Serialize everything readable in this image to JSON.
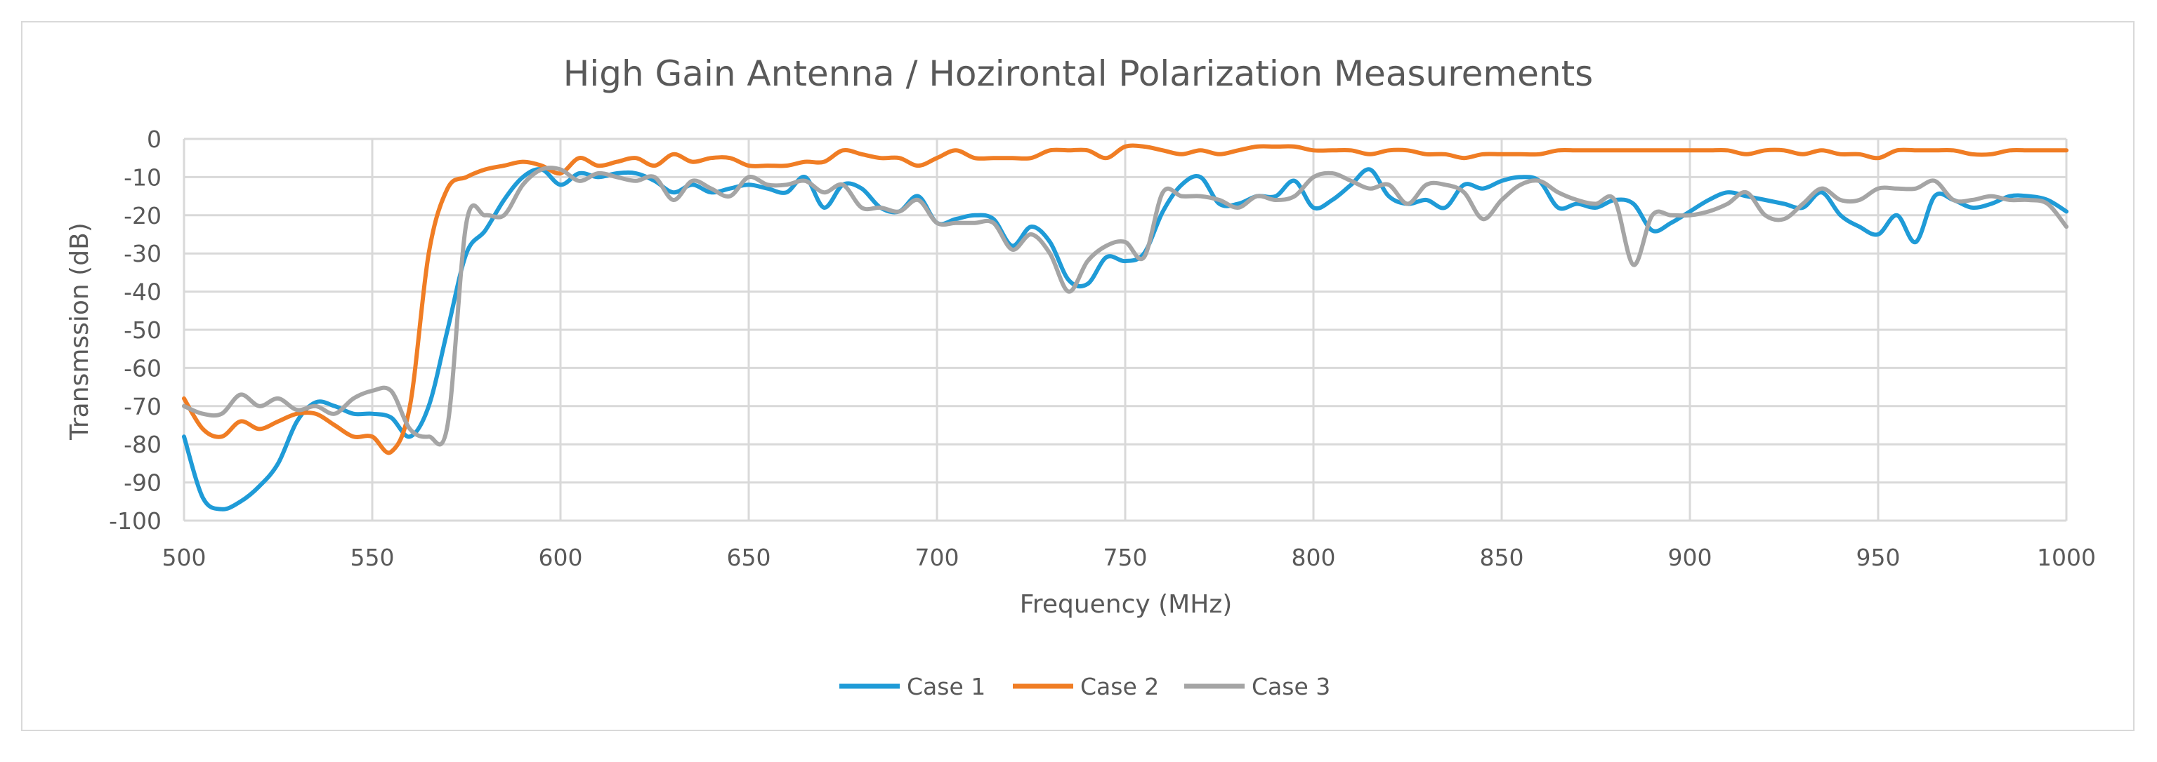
{
  "chart_data": {
    "type": "line",
    "title": "High Gain Antenna / Hozirontal Polarization Measurements",
    "xlabel": "Frequency (MHz)",
    "ylabel": "Transmssion (dB)",
    "xlim": [
      500,
      1000
    ],
    "ylim": [
      -100,
      0
    ],
    "x_ticks": [
      500,
      550,
      600,
      650,
      700,
      750,
      800,
      850,
      900,
      950,
      1000
    ],
    "y_ticks": [
      0,
      -10,
      -20,
      -30,
      -40,
      -50,
      -60,
      -70,
      -80,
      -90,
      -100
    ],
    "grid": true,
    "legend_position": "bottom",
    "series": [
      {
        "name": "Case 1",
        "color": "#1f9bd7",
        "x": [
          500,
          505,
          510,
          515,
          520,
          525,
          530,
          535,
          540,
          545,
          550,
          555,
          560,
          565,
          570,
          575,
          580,
          585,
          590,
          595,
          600,
          605,
          610,
          615,
          620,
          625,
          630,
          635,
          640,
          645,
          650,
          655,
          660,
          665,
          670,
          675,
          680,
          685,
          690,
          695,
          700,
          705,
          710,
          715,
          720,
          725,
          730,
          735,
          740,
          745,
          750,
          755,
          760,
          765,
          770,
          775,
          780,
          785,
          790,
          795,
          800,
          805,
          810,
          815,
          820,
          825,
          830,
          835,
          840,
          845,
          850,
          855,
          860,
          865,
          870,
          875,
          880,
          885,
          890,
          895,
          900,
          905,
          910,
          915,
          920,
          925,
          930,
          935,
          940,
          945,
          950,
          955,
          960,
          965,
          970,
          975,
          980,
          985,
          990,
          995,
          1000
        ],
        "values": [
          -78,
          -94,
          -97,
          -95,
          -91,
          -85,
          -74,
          -69,
          -70,
          -72,
          -72,
          -73,
          -78,
          -70,
          -50,
          -30,
          -24,
          -16,
          -10,
          -8,
          -12,
          -9,
          -10,
          -9,
          -9,
          -11,
          -14,
          -12,
          -14,
          -13,
          -12,
          -13,
          -14,
          -10,
          -18,
          -12,
          -13,
          -18,
          -19,
          -15,
          -22,
          -21,
          -20,
          -21,
          -28,
          -23,
          -27,
          -37,
          -38,
          -31,
          -32,
          -30,
          -19,
          -12,
          -10,
          -17,
          -17,
          -15,
          -15,
          -11,
          -18,
          -16,
          -12,
          -8,
          -15,
          -17,
          -16,
          -18,
          -12,
          -13,
          -11,
          -10,
          -11,
          -18,
          -17,
          -18,
          -16,
          -17,
          -24,
          -22,
          -19,
          -16,
          -14,
          -15,
          -16,
          -17,
          -18,
          -14,
          -20,
          -23,
          -25,
          -20,
          -27,
          -15,
          -16,
          -18,
          -17,
          -15,
          -15,
          -16,
          -19
        ]
      },
      {
        "name": "Case 2",
        "color": "#f07d24",
        "x": [
          500,
          505,
          510,
          515,
          520,
          525,
          530,
          535,
          540,
          545,
          550,
          555,
          560,
          565,
          570,
          575,
          580,
          585,
          590,
          595,
          600,
          605,
          610,
          615,
          620,
          625,
          630,
          635,
          640,
          645,
          650,
          655,
          660,
          665,
          670,
          675,
          680,
          685,
          690,
          695,
          700,
          705,
          710,
          715,
          720,
          725,
          730,
          735,
          740,
          745,
          750,
          755,
          760,
          765,
          770,
          775,
          780,
          785,
          790,
          795,
          800,
          805,
          810,
          815,
          820,
          825,
          830,
          835,
          840,
          845,
          850,
          855,
          860,
          865,
          870,
          875,
          880,
          885,
          890,
          895,
          900,
          905,
          910,
          915,
          920,
          925,
          930,
          935,
          940,
          945,
          950,
          955,
          960,
          965,
          970,
          975,
          980,
          985,
          990,
          995,
          1000
        ],
        "values": [
          -68,
          -76,
          -78,
          -74,
          -76,
          -74,
          -72,
          -72,
          -75,
          -78,
          -78,
          -82,
          -70,
          -30,
          -13,
          -10,
          -8,
          -7,
          -6,
          -7,
          -9,
          -5,
          -7,
          -6,
          -5,
          -7,
          -4,
          -6,
          -5,
          -5,
          -7,
          -7,
          -7,
          -6,
          -6,
          -3,
          -4,
          -5,
          -5,
          -7,
          -5,
          -3,
          -5,
          -5,
          -5,
          -5,
          -3,
          -3,
          -3,
          -5,
          -2,
          -2,
          -3,
          -4,
          -3,
          -4,
          -3,
          -2,
          -2,
          -2,
          -3,
          -3,
          -3,
          -4,
          -3,
          -3,
          -4,
          -4,
          -5,
          -4,
          -4,
          -4,
          -4,
          -3,
          -3,
          -3,
          -3,
          -3,
          -3,
          -3,
          -3,
          -3,
          -3,
          -4,
          -3,
          -3,
          -4,
          -3,
          -4,
          -4,
          -5,
          -3,
          -3,
          -3,
          -3,
          -4,
          -4,
          -3,
          -3,
          -3,
          -3
        ]
      },
      {
        "name": "Case 3",
        "color": "#a5a5a5",
        "x": [
          500,
          505,
          510,
          515,
          520,
          525,
          530,
          535,
          540,
          545,
          550,
          555,
          560,
          565,
          570,
          575,
          580,
          585,
          590,
          595,
          600,
          605,
          610,
          615,
          620,
          625,
          630,
          635,
          640,
          645,
          650,
          655,
          660,
          665,
          670,
          675,
          680,
          685,
          690,
          695,
          700,
          705,
          710,
          715,
          720,
          725,
          730,
          735,
          740,
          745,
          750,
          755,
          760,
          765,
          770,
          775,
          780,
          785,
          790,
          795,
          800,
          805,
          810,
          815,
          820,
          825,
          830,
          835,
          840,
          845,
          850,
          855,
          860,
          865,
          870,
          875,
          880,
          885,
          890,
          895,
          900,
          905,
          910,
          915,
          920,
          925,
          930,
          935,
          940,
          945,
          950,
          955,
          960,
          965,
          970,
          975,
          980,
          985,
          990,
          995,
          1000
        ],
        "values": [
          -70,
          -72,
          -72,
          -67,
          -70,
          -68,
          -71,
          -70,
          -72,
          -68,
          -66,
          -66,
          -76,
          -78,
          -75,
          -22,
          -20,
          -20,
          -12,
          -8,
          -8,
          -11,
          -9,
          -10,
          -11,
          -10,
          -16,
          -11,
          -13,
          -15,
          -10,
          -12,
          -12,
          -11,
          -14,
          -12,
          -18,
          -18,
          -19,
          -16,
          -22,
          -22,
          -22,
          -22,
          -29,
          -25,
          -30,
          -40,
          -32,
          -28,
          -27,
          -31,
          -14,
          -15,
          -15,
          -16,
          -18,
          -15,
          -16,
          -15,
          -10,
          -9,
          -11,
          -13,
          -12,
          -17,
          -12,
          -12,
          -14,
          -21,
          -16,
          -12,
          -11,
          -14,
          -16,
          -17,
          -16,
          -33,
          -20,
          -20,
          -20,
          -19,
          -17,
          -14,
          -20,
          -21,
          -17,
          -13,
          -16,
          -16,
          -13,
          -13,
          -13,
          -11,
          -16,
          -16,
          -15,
          -16,
          -16,
          -17,
          -23
        ]
      }
    ]
  }
}
